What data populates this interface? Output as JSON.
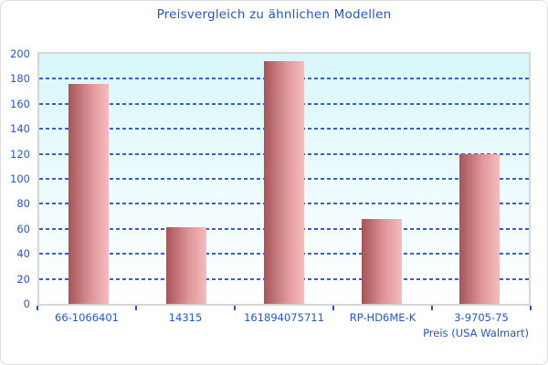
{
  "chart_data": {
    "type": "bar",
    "title": "Preisvergleich zu ähnlichen Modellen",
    "categories": [
      "66-1066401",
      "14315",
      "161894075711",
      "RP-HD6ME-K",
      "3-9705-75"
    ],
    "values": [
      176,
      61,
      194,
      68,
      120
    ],
    "xlabel": "Preis (USA Walmart)",
    "ylabel": "",
    "ylim": [
      0,
      200
    ],
    "ytick_step": 20,
    "yticks": [
      0,
      20,
      40,
      60,
      80,
      100,
      120,
      140,
      160,
      180,
      200
    ],
    "grid": "horizontal-dashed",
    "legend": "none",
    "colors": {
      "text_blue": "#2257d0",
      "gridline_blue": "#3261cf",
      "bar_gradient_start": "#a65457",
      "bar_gradient_mid": "#dd9598",
      "bar_gradient_end": "#f8bcbe",
      "plot_bg_top": "#d8f7fb",
      "plot_bg_bottom": "#ffffff",
      "plot_border": "#d6d6d6",
      "page_border": "#dcdcdc"
    }
  }
}
